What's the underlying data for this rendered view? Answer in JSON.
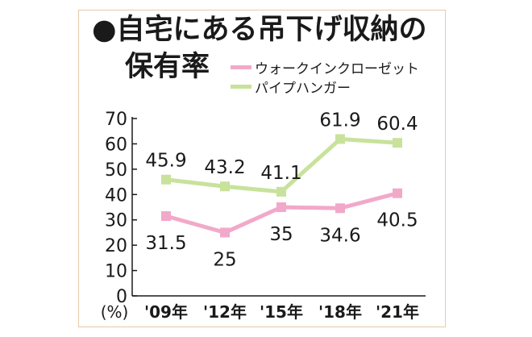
{
  "title": {
    "line1": "●自宅にある吊下げ収納の",
    "line2": "保有率"
  },
  "colors": {
    "walk_in": "#f2a9c9",
    "pipe": "#c8e29b",
    "frame_border": "#e9c9a9",
    "axis": "#1a1a1a"
  },
  "chart_data": {
    "type": "line",
    "title": "●自宅にある吊下げ収納の保有率",
    "categories": [
      "'09年",
      "'12年",
      "'15年",
      "'18年",
      "'21年"
    ],
    "ylabel": "(%)",
    "ylim": [
      0,
      70
    ],
    "yticks": [
      0,
      10,
      20,
      30,
      40,
      50,
      60,
      70
    ],
    "grid": false,
    "legend_position": "top-right",
    "series": [
      {
        "name": "ウォークインクローゼット",
        "values": [
          31.5,
          25,
          35,
          34.6,
          40.5
        ],
        "labels": [
          "31.5",
          "25",
          "35",
          "34.6",
          "40.5"
        ],
        "label_side": "below"
      },
      {
        "name": "パイプハンガー",
        "values": [
          45.9,
          43.2,
          41.1,
          61.9,
          60.4
        ],
        "labels": [
          "45.9",
          "43.2",
          "41.1",
          "61.9",
          "60.4"
        ],
        "label_side": "above"
      }
    ]
  }
}
